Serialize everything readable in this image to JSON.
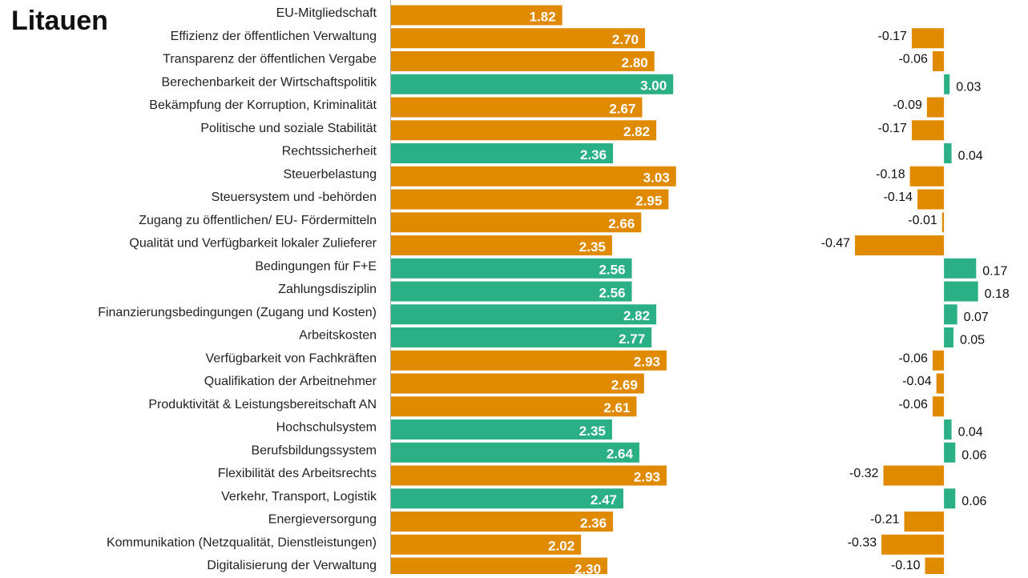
{
  "chart_data": {
    "type": "bar",
    "title": "Litauen",
    "categories": [
      "EU-Mitgliedschaft",
      "Effizienz der öffentlichen Verwaltung",
      "Transparenz der öffentlichen Vergabe",
      "Berechenbarkeit der Wirtschaftspolitik",
      "Bekämpfung der Korruption, Kriminalität",
      "Politische und soziale Stabilität",
      "Rechtssicherheit",
      "Steuerbelastung",
      "Steuersystem und -behörden",
      "Zugang zu öffentlichen/ EU- Fördermitteln",
      "Qualität und Verfügbarkeit lokaler Zulieferer",
      "Bedingungen für F+E",
      "Zahlungsdisziplin",
      "Finanzierungsbedingungen (Zugang und Kosten)",
      "Arbeitskosten",
      "Verfügbarkeit von Fachkräften",
      "Qualifikation der Arbeitnehmer",
      "Produktivität & Leistungsbereitschaft AN",
      "Hochschulsystem",
      "Berufsbildungssystem",
      "Flexibilität des Arbeitsrechts",
      "Verkehr, Transport, Logistik",
      "Energieversorgung",
      "Kommunikation (Netzqualität, Dienstleistungen)",
      "Digitalisierung der Verwaltung"
    ],
    "series": [
      {
        "values": [
          1.82,
          2.7,
          2.8,
          3.0,
          2.67,
          2.82,
          2.36,
          3.03,
          2.95,
          2.66,
          2.35,
          2.56,
          2.56,
          2.82,
          2.77,
          2.93,
          2.69,
          2.61,
          2.35,
          2.64,
          2.93,
          2.47,
          2.36,
          2.02,
          2.3
        ],
        "value_labels": [
          "1.82",
          "2.70",
          "2.80",
          "3.00",
          "2.67",
          "2.82",
          "2.36",
          "3.03",
          "2.95",
          "2.66",
          "2.35",
          "2.56",
          "2.56",
          "2.82",
          "2.77",
          "2.93",
          "2.69",
          "2.61",
          "2.35",
          "2.64",
          "2.93",
          "2.47",
          "2.36",
          "2.02",
          "2.30"
        ],
        "colors": [
          "#e08a00",
          "#e08a00",
          "#e08a00",
          "#2bb085",
          "#e08a00",
          "#e08a00",
          "#2bb085",
          "#e08a00",
          "#e08a00",
          "#e08a00",
          "#e08a00",
          "#2bb085",
          "#2bb085",
          "#2bb085",
          "#2bb085",
          "#e08a00",
          "#e08a00",
          "#e08a00",
          "#2bb085",
          "#2bb085",
          "#e08a00",
          "#2bb085",
          "#e08a00",
          "#e08a00",
          "#e08a00"
        ],
        "xlim": [
          0,
          3.2
        ]
      },
      {
        "values": [
          null,
          -0.17,
          -0.06,
          0.03,
          -0.09,
          -0.17,
          0.04,
          -0.18,
          -0.14,
          -0.01,
          -0.47,
          0.17,
          0.18,
          0.07,
          0.05,
          -0.06,
          -0.04,
          -0.06,
          0.04,
          0.06,
          -0.32,
          0.06,
          -0.21,
          -0.33,
          -0.1
        ],
        "value_labels": [
          null,
          "-0.17",
          "-0.06",
          "0.03",
          "-0.09",
          "-0.17",
          "0.04",
          "-0.18",
          "-0.14",
          "-0.01",
          "-0.47",
          "0.17",
          "0.18",
          "0.07",
          "0.05",
          "-0.06",
          "-0.04",
          "-0.06",
          "0.04",
          "0.06",
          "-0.32",
          "0.06",
          "-0.21",
          "-0.33",
          "-0.10"
        ],
        "positive_color": "#2bb085",
        "negative_color": "#e08a00",
        "xlim": [
          -0.5,
          0.3
        ]
      }
    ]
  }
}
